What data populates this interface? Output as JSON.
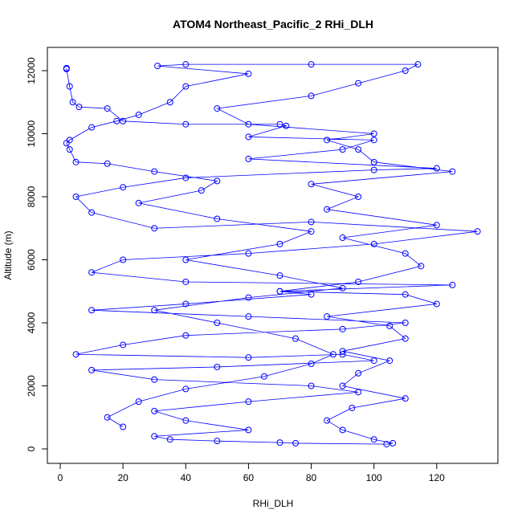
{
  "chart_data": {
    "type": "line",
    "title": "ATOM4 Northeast_Pacific_2 RHi_DLH",
    "x_label": "RHi_DLH",
    "y_label": "Altitude (m)",
    "xlim": [
      -4.1,
      139.5
    ],
    "ylim": [
      -459,
      12739
    ],
    "xticks": [
      0,
      20,
      40,
      60,
      80,
      100,
      120
    ],
    "yticks": [
      0,
      2000,
      4000,
      6000,
      8000,
      10000,
      12000
    ],
    "series": [
      {
        "color": "#0000ff",
        "x": [
          2,
          2,
          3,
          4,
          6,
          15,
          20,
          40,
          70,
          72,
          60,
          100,
          90,
          60,
          120,
          100,
          40,
          20,
          5,
          10,
          30,
          80,
          133,
          100,
          60,
          20,
          10,
          40,
          125,
          70,
          80,
          40,
          10,
          60,
          110,
          90,
          40,
          20,
          5,
          60,
          90,
          100,
          50,
          10,
          30,
          80,
          95,
          60,
          30,
          40,
          60,
          30,
          35,
          50,
          70,
          75,
          104,
          106,
          100,
          90,
          85,
          93,
          110,
          90,
          95,
          105,
          90,
          110,
          105,
          85,
          120,
          110,
          70,
          95,
          115,
          110,
          90,
          120,
          85,
          95,
          80,
          125,
          100,
          95,
          85,
          100,
          60,
          50,
          80,
          95,
          110,
          114,
          80,
          40,
          31,
          60,
          40,
          35,
          25,
          18,
          10,
          3,
          2,
          3,
          5,
          15,
          30,
          50,
          45,
          25,
          50,
          80,
          70,
          40,
          70,
          90,
          60,
          30,
          50,
          75,
          87,
          80,
          65,
          40,
          25,
          15,
          20
        ],
        "values": [
          12080,
          12050,
          11500,
          11000,
          10850,
          10800,
          10400,
          10300,
          10300,
          10250,
          9900,
          9800,
          9500,
          9200,
          8900,
          8850,
          8600,
          8300,
          8000,
          7500,
          7000,
          7200,
          6900,
          6500,
          6200,
          6000,
          5600,
          5300,
          5200,
          5000,
          4900,
          4600,
          4400,
          4200,
          4000,
          3800,
          3600,
          3300,
          3000,
          2900,
          3000,
          2800,
          2600,
          2500,
          2200,
          2000,
          1800,
          1500,
          1200,
          900,
          600,
          400,
          300,
          250,
          200,
          180,
          150,
          180,
          300,
          600,
          900,
          1300,
          1600,
          2000,
          2400,
          2800,
          3100,
          3500,
          3900,
          4200,
          4600,
          4900,
          5000,
          5300,
          5800,
          6200,
          6700,
          7100,
          7600,
          8000,
          8400,
          8800,
          9100,
          9500,
          9800,
          10000,
          10300,
          10800,
          11200,
          11600,
          12000,
          12200,
          12200,
          12200,
          12150,
          11900,
          11500,
          11000,
          10600,
          10400,
          10200,
          9800,
          9700,
          9500,
          9100,
          9050,
          8800,
          8500,
          8200,
          7800,
          7300,
          6900,
          6500,
          6000,
          5500,
          5100,
          4800,
          4400,
          4000,
          3500,
          3000,
          2700,
          2300,
          1900,
          1500,
          1000,
          700
        ]
      }
    ]
  }
}
